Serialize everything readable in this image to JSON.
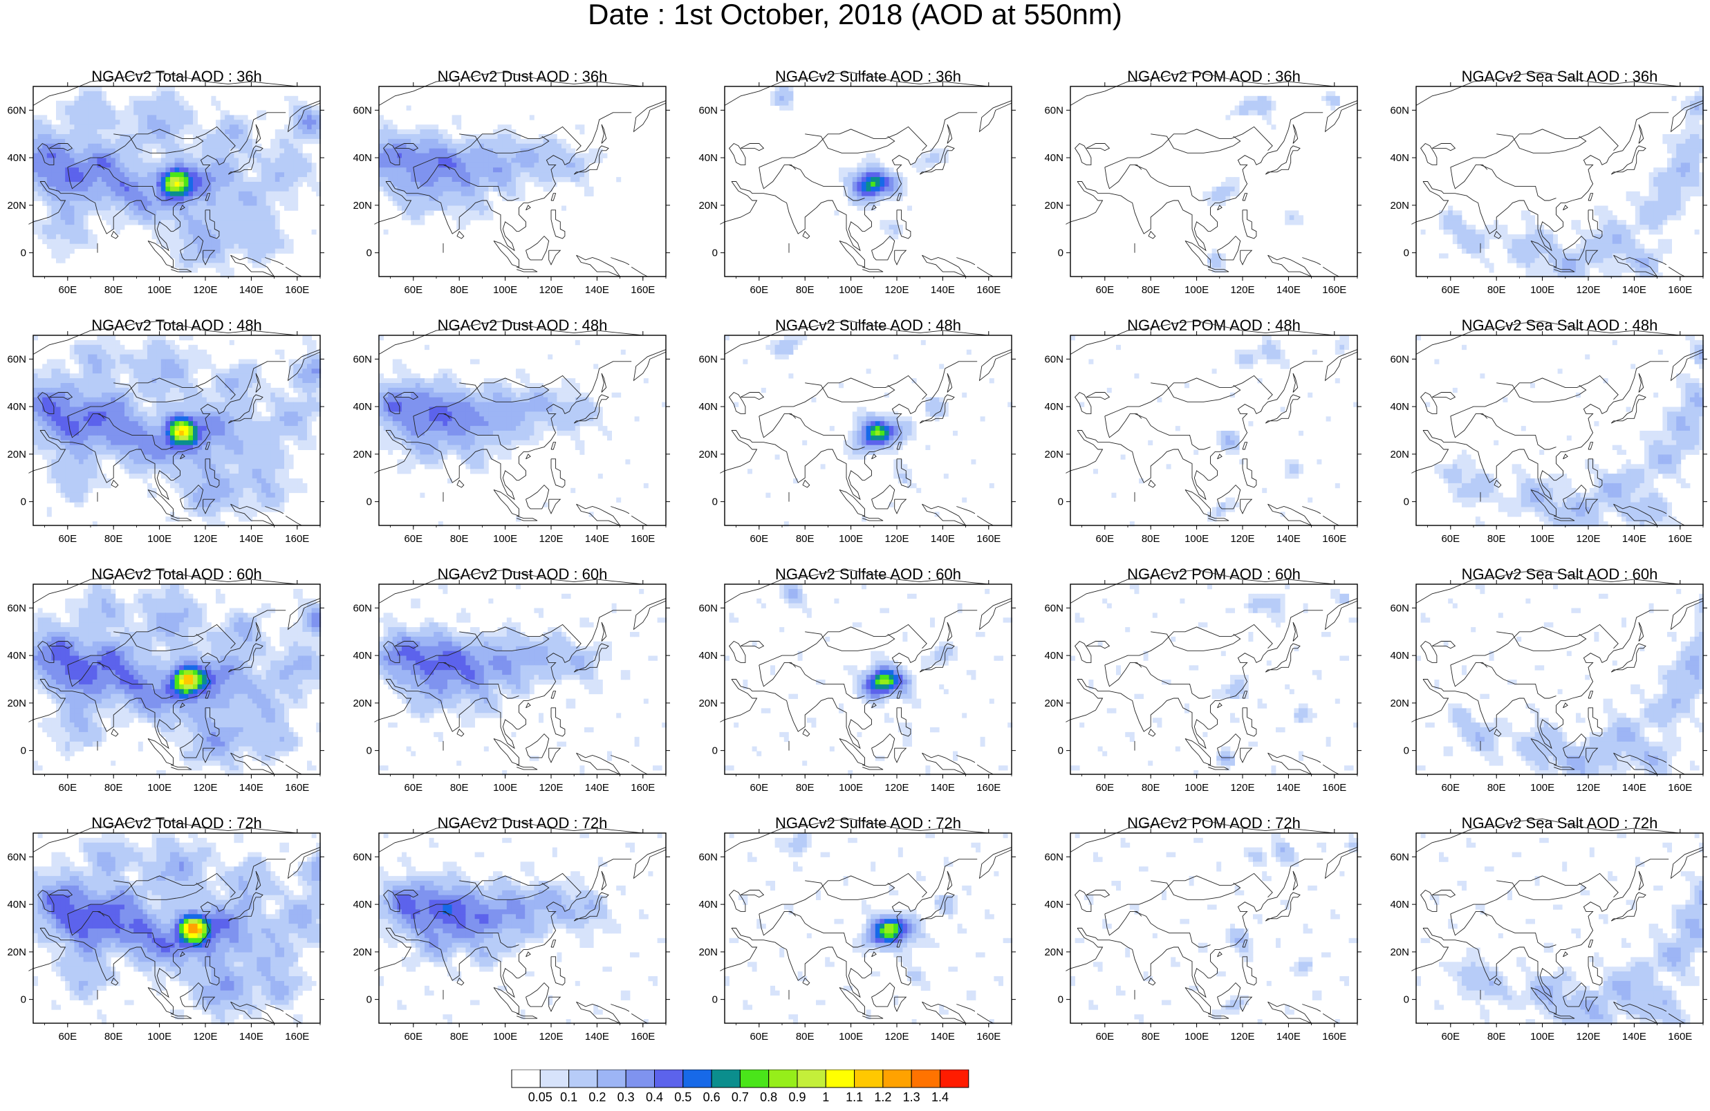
{
  "figure": {
    "title": "Date : 1st October, 2018 (AOD at 550nm)"
  },
  "panels": [
    {
      "title": "NGACv2 Total AOD : 36h"
    },
    {
      "title": "NGACv2 Dust AOD : 36h"
    },
    {
      "title": "NGACv2 Sulfate AOD : 36h"
    },
    {
      "title": "NGACv2 POM AOD : 36h"
    },
    {
      "title": "NGACv2 Sea Salt AOD : 36h"
    },
    {
      "title": "NGACv2 Total AOD : 48h"
    },
    {
      "title": "NGACv2 Dust AOD : 48h"
    },
    {
      "title": "NGACv2 Sulfate AOD : 48h"
    },
    {
      "title": "NGACv2 POM AOD : 48h"
    },
    {
      "title": "NGACv2 Sea Salt AOD : 48h"
    },
    {
      "title": "NGACv2 Total AOD : 60h"
    },
    {
      "title": "NGACv2 Dust AOD : 60h"
    },
    {
      "title": "NGACv2 Sulfate AOD : 60h"
    },
    {
      "title": "NGACv2 POM AOD : 60h"
    },
    {
      "title": "NGACv2 Sea Salt AOD : 60h"
    },
    {
      "title": "NGACv2 Total AOD : 72h"
    },
    {
      "title": "NGACv2 Dust AOD : 72h"
    },
    {
      "title": "NGACv2 Sulfate AOD : 72h"
    },
    {
      "title": "NGACv2 POM AOD : 72h"
    },
    {
      "title": "NGACv2 Sea Salt  AOD : 72h"
    }
  ],
  "axes": {
    "lon_ticks": [
      "60E",
      "80E",
      "100E",
      "120E",
      "140E",
      "160E"
    ],
    "lat_ticks": [
      "60N",
      "40N",
      "20N",
      "0"
    ]
  },
  "colorbar": {
    "labels": [
      "0.05",
      "0.1",
      "0.2",
      "0.3",
      "0.4",
      "0.5",
      "0.6",
      "0.7",
      "0.8",
      "0.9",
      "1",
      "1.1",
      "1.2",
      "1.3",
      "1.4"
    ],
    "colors": [
      "#ffffff",
      "#d7e3fb",
      "#b7ccf8",
      "#9db5f5",
      "#7f93ef",
      "#5c63ec",
      "#1769e8",
      "#0b8e8d",
      "#4ae51a",
      "#96ee1a",
      "#c4ef3a",
      "#ffff00",
      "#ffc800",
      "#ffa200",
      "#ff7300",
      "#ff1c00"
    ]
  }
}
